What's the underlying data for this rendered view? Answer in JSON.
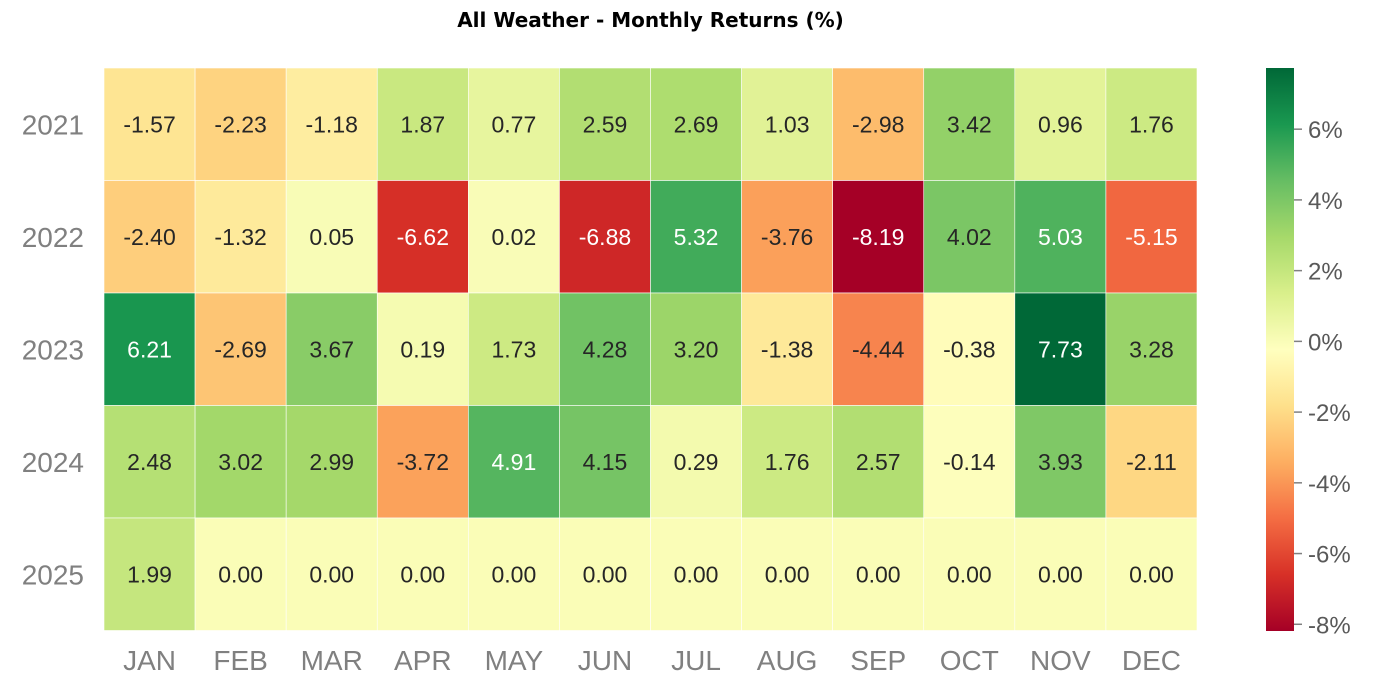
{
  "chart_data": {
    "type": "heatmap",
    "title": "All Weather - Monthly Returns (%)",
    "xlabel": "",
    "ylabel": "",
    "columns": [
      "JAN",
      "FEB",
      "MAR",
      "APR",
      "MAY",
      "JUN",
      "JUL",
      "AUG",
      "SEP",
      "OCT",
      "NOV",
      "DEC"
    ],
    "rows": [
      "2021",
      "2022",
      "2023",
      "2024",
      "2025"
    ],
    "values": [
      [
        -1.57,
        -2.23,
        -1.18,
        1.87,
        0.77,
        2.59,
        2.69,
        1.03,
        -2.98,
        3.42,
        0.96,
        1.76
      ],
      [
        -2.4,
        -1.32,
        0.05,
        -6.62,
        0.02,
        -6.88,
        5.32,
        -3.76,
        -8.19,
        4.02,
        5.03,
        -5.15
      ],
      [
        6.21,
        -2.69,
        3.67,
        0.19,
        1.73,
        4.28,
        3.2,
        -1.38,
        -4.44,
        -0.38,
        7.73,
        3.28
      ],
      [
        2.48,
        3.02,
        2.99,
        -3.72,
        4.91,
        4.15,
        0.29,
        1.76,
        2.57,
        -0.14,
        3.93,
        -2.11
      ],
      [
        1.99,
        0.0,
        0.0,
        0.0,
        0.0,
        0.0,
        0.0,
        0.0,
        0.0,
        0.0,
        0.0,
        0.0
      ]
    ],
    "value_labels": [
      [
        "-1.57",
        "-2.23",
        "-1.18",
        "1.87",
        "0.77",
        "2.59",
        "2.69",
        "1.03",
        "-2.98",
        "3.42",
        "0.96",
        "1.76"
      ],
      [
        "-2.40",
        "-1.32",
        "0.05",
        "-6.62",
        "0.02",
        "-6.88",
        "5.32",
        "-3.76",
        "-8.19",
        "4.02",
        "5.03",
        "-5.15"
      ],
      [
        "6.21",
        "-2.69",
        "3.67",
        "0.19",
        "1.73",
        "4.28",
        "3.20",
        "-1.38",
        "-4.44",
        "-0.38",
        "7.73",
        "3.28"
      ],
      [
        "2.48",
        "3.02",
        "2.99",
        "-3.72",
        "4.91",
        "4.15",
        "0.29",
        "1.76",
        "2.57",
        "-0.14",
        "3.93",
        "-2.11"
      ],
      [
        "1.99",
        "0.00",
        "0.00",
        "0.00",
        "0.00",
        "0.00",
        "0.00",
        "0.00",
        "0.00",
        "0.00",
        "0.00",
        "0.00"
      ]
    ],
    "colormap": "RdYlGn",
    "colorbar": {
      "vmin": -8.19,
      "vmax": 7.73,
      "ticks": [
        6,
        4,
        2,
        0,
        -2,
        -4,
        -6,
        -8
      ],
      "tick_labels": [
        "6%",
        "4%",
        "2%",
        "0%",
        "-2%",
        "-4%",
        "-6%",
        "-8%"
      ],
      "position": "right"
    },
    "grid": false
  }
}
